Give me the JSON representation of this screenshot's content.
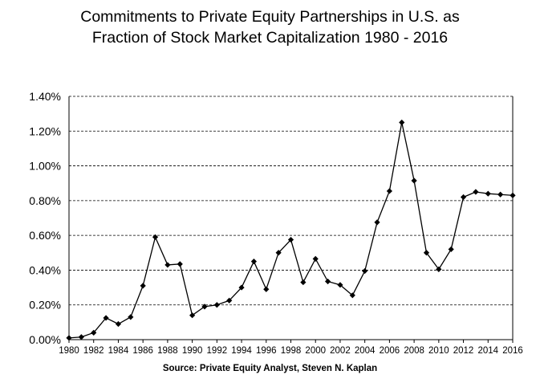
{
  "chart_data": {
    "type": "line",
    "title_line1": "Commitments to Private Equity Partnerships in U.S. as",
    "title_line2": "Fraction of Stock Market Capitalization 1980 - 2016",
    "source": "Source:  Private Equity Analyst, Steven N. Kaplan",
    "xlabel": "",
    "ylabel": "",
    "ylim": [
      0,
      1.4
    ],
    "y_ticks": [
      0,
      0.2,
      0.4,
      0.6,
      0.8,
      1.0,
      1.2,
      1.4
    ],
    "y_tick_labels": [
      "0.00%",
      "0.20%",
      "0.40%",
      "0.60%",
      "0.80%",
      "1.00%",
      "1.20%",
      "1.40%"
    ],
    "x_tick_labels": [
      "1980",
      "1982",
      "1984",
      "1986",
      "1988",
      "1990",
      "1992",
      "1994",
      "1996",
      "1998",
      "2000",
      "2002",
      "2004",
      "2006",
      "2008",
      "2010",
      "2012",
      "2014",
      "2016"
    ],
    "grid": "horizontal dashed",
    "marker": "diamond",
    "series_color": "#000000",
    "series": [
      {
        "x": [
          1980,
          1981,
          1982,
          1983,
          1984,
          1985,
          1986,
          1987,
          1988,
          1989,
          1990,
          1991,
          1992,
          1993,
          1994,
          1995,
          1996,
          1997,
          1998,
          1999,
          2000,
          2001,
          2002,
          2003,
          2004,
          2005,
          2006,
          2007,
          2008,
          2009,
          2010,
          2011,
          2012,
          2013,
          2014,
          2015,
          2016
        ],
        "values": [
          0.01,
          0.015,
          0.04,
          0.125,
          0.09,
          0.13,
          0.31,
          0.59,
          0.43,
          0.435,
          0.14,
          0.19,
          0.2,
          0.225,
          0.3,
          0.45,
          0.29,
          0.5,
          0.575,
          0.33,
          0.465,
          0.335,
          0.315,
          0.255,
          0.395,
          0.675,
          0.855,
          1.25,
          0.915,
          0.5,
          0.405,
          0.52,
          0.82,
          0.85,
          0.84,
          0.835,
          0.83
        ]
      }
    ]
  }
}
